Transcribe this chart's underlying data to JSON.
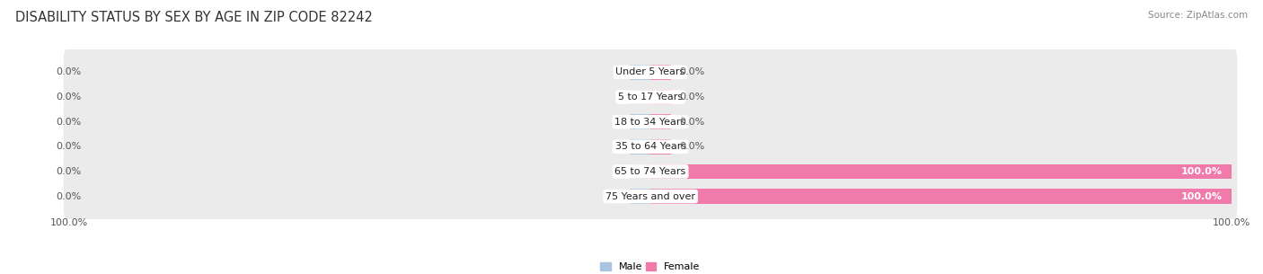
{
  "title": "DISABILITY STATUS BY SEX BY AGE IN ZIP CODE 82242",
  "source": "Source: ZipAtlas.com",
  "categories": [
    "Under 5 Years",
    "5 to 17 Years",
    "18 to 34 Years",
    "35 to 64 Years",
    "65 to 74 Years",
    "75 Years and over"
  ],
  "male_values": [
    0.0,
    0.0,
    0.0,
    0.0,
    0.0,
    0.0
  ],
  "female_values": [
    0.0,
    0.0,
    0.0,
    0.0,
    100.0,
    100.0
  ],
  "male_color": "#a8c4e0",
  "female_color": "#f07baa",
  "row_bg_color": "#ebebeb",
  "xlim": 100.0,
  "title_fontsize": 10.5,
  "label_fontsize": 8.0,
  "tick_fontsize": 8.0,
  "source_fontsize": 7.5,
  "stub_size": 3.5
}
